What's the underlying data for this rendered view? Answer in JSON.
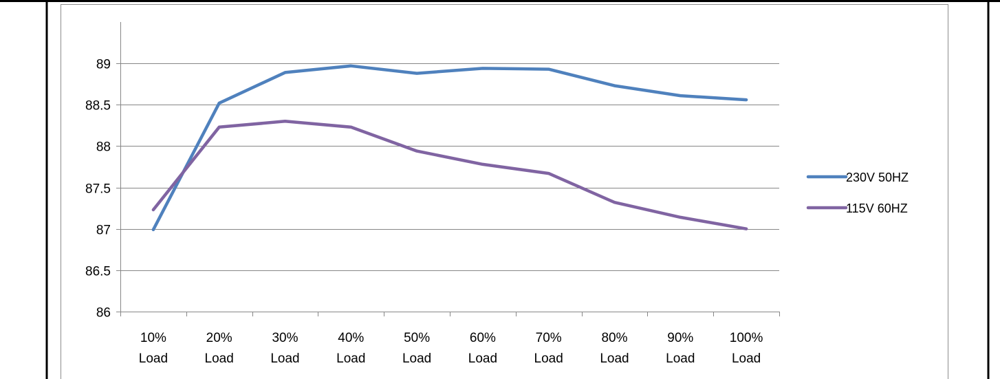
{
  "chart_data": {
    "type": "line",
    "categories": [
      [
        "10%",
        "Load"
      ],
      [
        "20%",
        "Load"
      ],
      [
        "30%",
        "Load"
      ],
      [
        "40%",
        "Load"
      ],
      [
        "50%",
        "Load"
      ],
      [
        "60%",
        "Load"
      ],
      [
        "70%",
        "Load"
      ],
      [
        "80%",
        "Load"
      ],
      [
        "90%",
        "Load"
      ],
      [
        "100%",
        "Load"
      ]
    ],
    "series": [
      {
        "name": "230V 50HZ",
        "color": "#4F81BD",
        "values": [
          86.99,
          88.52,
          88.89,
          88.97,
          88.88,
          88.94,
          88.93,
          88.73,
          88.61,
          88.56
        ]
      },
      {
        "name": "115V 60HZ",
        "color": "#8064A2",
        "values": [
          87.23,
          88.23,
          88.3,
          88.23,
          87.94,
          87.78,
          87.67,
          87.32,
          87.14,
          87.0
        ]
      }
    ],
    "ylim": [
      86,
      89.5
    ],
    "yticks": [
      "86",
      "86.5",
      "87",
      "87.5",
      "88",
      "88.5",
      "89"
    ],
    "ytick_values": [
      86,
      86.5,
      87,
      87.5,
      88,
      88.5,
      89
    ],
    "grid": true,
    "legend_position": "right",
    "title": "",
    "xlabel": "",
    "ylabel": ""
  }
}
